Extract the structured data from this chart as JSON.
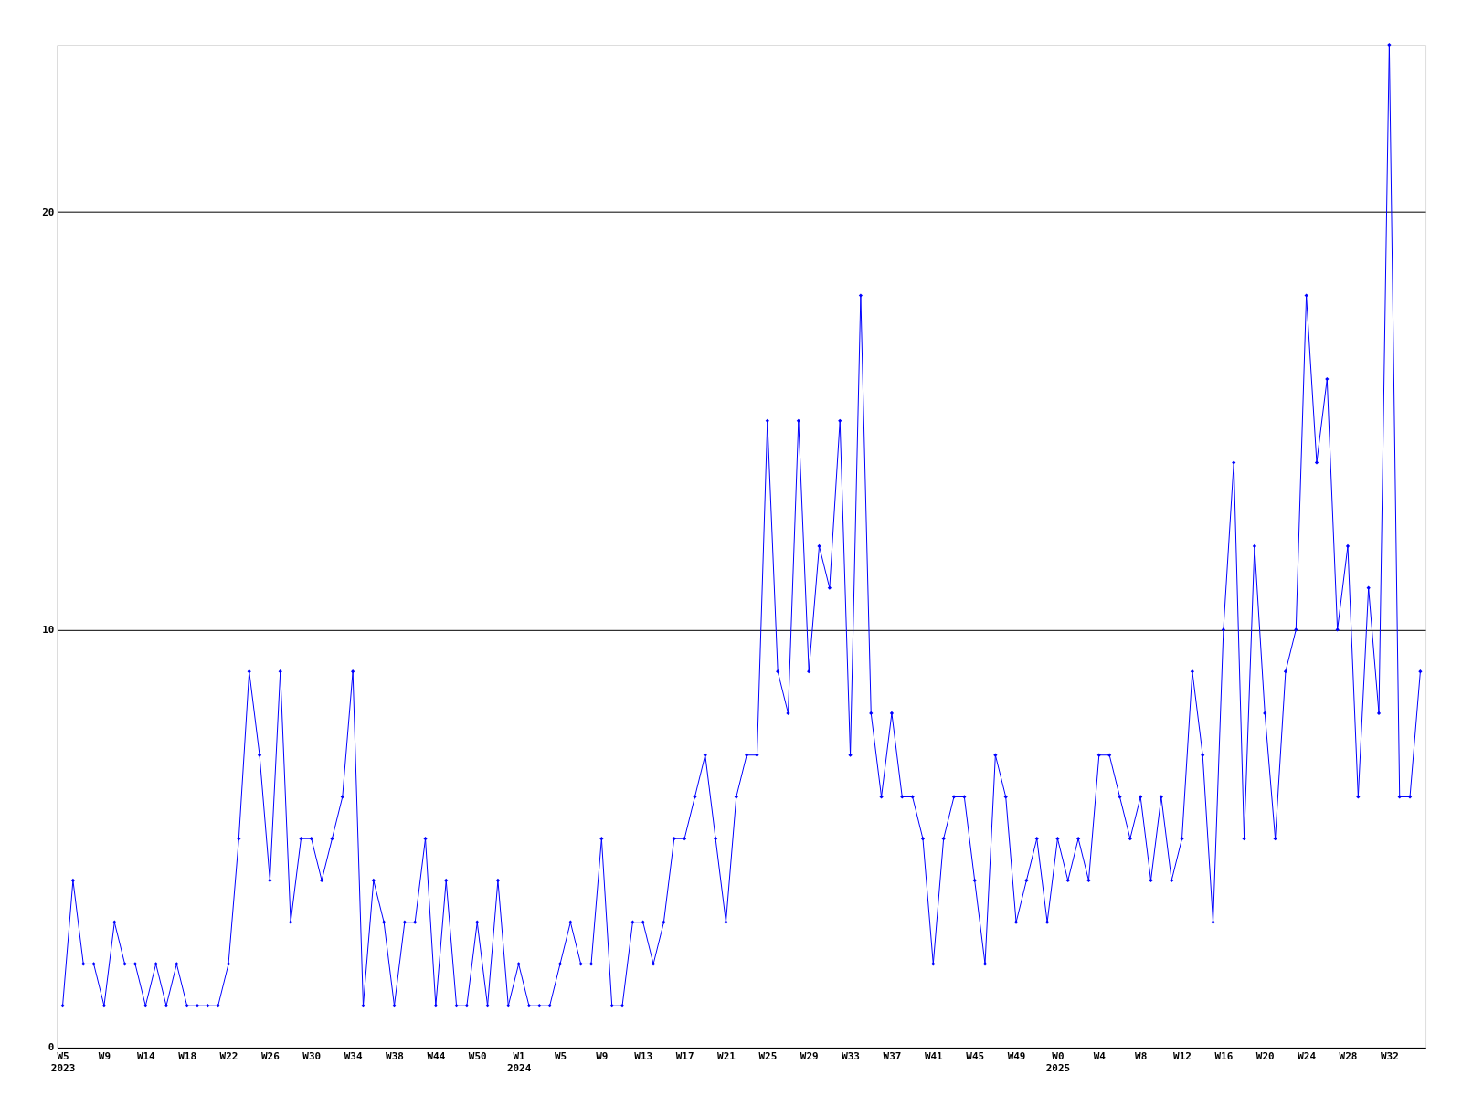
{
  "chart_data": {
    "type": "line",
    "categories": [
      "W5\n2023",
      null,
      null,
      null,
      "W9",
      null,
      null,
      null,
      "W14",
      null,
      null,
      null,
      "W18",
      null,
      null,
      null,
      "W22",
      null,
      null,
      null,
      "W26",
      null,
      null,
      null,
      "W30",
      null,
      null,
      null,
      "W34",
      null,
      null,
      null,
      "W38",
      null,
      null,
      null,
      "W44",
      null,
      null,
      null,
      "W50",
      null,
      null,
      null,
      "W1\n2024",
      null,
      null,
      null,
      "W5",
      null,
      null,
      null,
      "W9",
      null,
      null,
      null,
      "W13",
      null,
      null,
      null,
      "W17",
      null,
      null,
      null,
      "W21",
      null,
      null,
      null,
      "W25",
      null,
      null,
      null,
      "W29",
      null,
      null,
      null,
      "W33",
      null,
      null,
      null,
      "W37",
      null,
      null,
      null,
      "W41",
      null,
      null,
      null,
      "W45",
      null,
      null,
      null,
      "W49",
      null,
      null,
      null,
      "W0\n2025",
      null,
      null,
      null,
      "W4",
      null,
      null,
      null,
      "W8",
      null,
      null,
      null,
      "W12",
      null,
      null,
      null,
      "W16",
      null,
      null,
      null,
      "W20",
      null,
      null,
      null,
      "W24",
      null,
      null,
      null,
      "W28",
      null,
      null,
      null,
      "W32",
      null,
      null,
      null
    ],
    "series": [
      {
        "color": "#0000ff",
        "values": [
          1,
          4,
          2,
          2,
          1,
          3,
          2,
          2,
          1,
          2,
          1,
          2,
          1,
          1,
          1,
          1,
          2,
          5,
          9,
          7,
          4,
          9,
          3,
          5,
          5,
          4,
          5,
          6,
          9,
          1,
          4,
          3,
          1,
          3,
          3,
          5,
          1,
          4,
          1,
          1,
          3,
          1,
          4,
          1,
          2,
          1,
          1,
          1,
          2,
          3,
          2,
          2,
          5,
          1,
          1,
          3,
          3,
          2,
          3,
          5,
          5,
          6,
          7,
          5,
          3,
          6,
          7,
          7,
          15,
          9,
          8,
          15,
          9,
          12,
          11,
          15,
          7,
          18,
          8,
          6,
          8,
          6,
          6,
          5,
          2,
          5,
          6,
          6,
          4,
          2,
          7,
          6,
          3,
          4,
          5,
          3,
          5,
          4,
          5,
          4,
          7,
          7,
          6,
          5,
          6,
          4,
          6,
          4,
          5,
          9,
          7,
          3,
          10,
          14,
          5,
          12,
          8,
          5,
          9,
          10,
          18,
          14,
          16,
          10,
          12,
          6,
          11,
          8,
          24,
          6,
          6,
          9
        ]
      }
    ],
    "ylim": [
      0,
      24
    ],
    "yticks": [
      0,
      10,
      20
    ],
    "grid": "y",
    "marker": "diamond",
    "line_style": "solid"
  }
}
